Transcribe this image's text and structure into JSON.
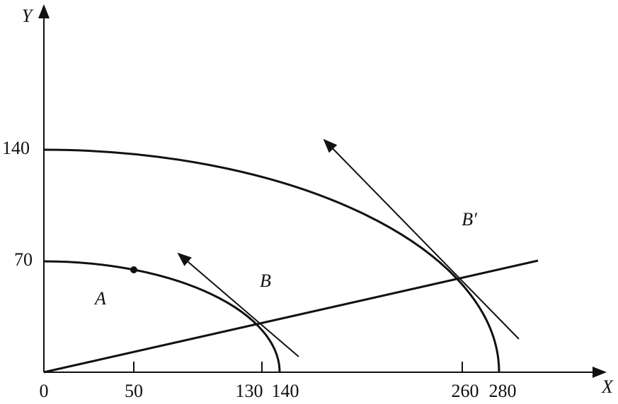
{
  "axes": {
    "x_label": "X",
    "y_label": "Y",
    "origin": "0"
  },
  "x_ticks": [
    "50",
    "130",
    "140",
    "260",
    "280"
  ],
  "y_ticks": [
    "70",
    "140"
  ],
  "regions": {
    "a": "A",
    "b": "B",
    "b_prime": "B′"
  }
}
